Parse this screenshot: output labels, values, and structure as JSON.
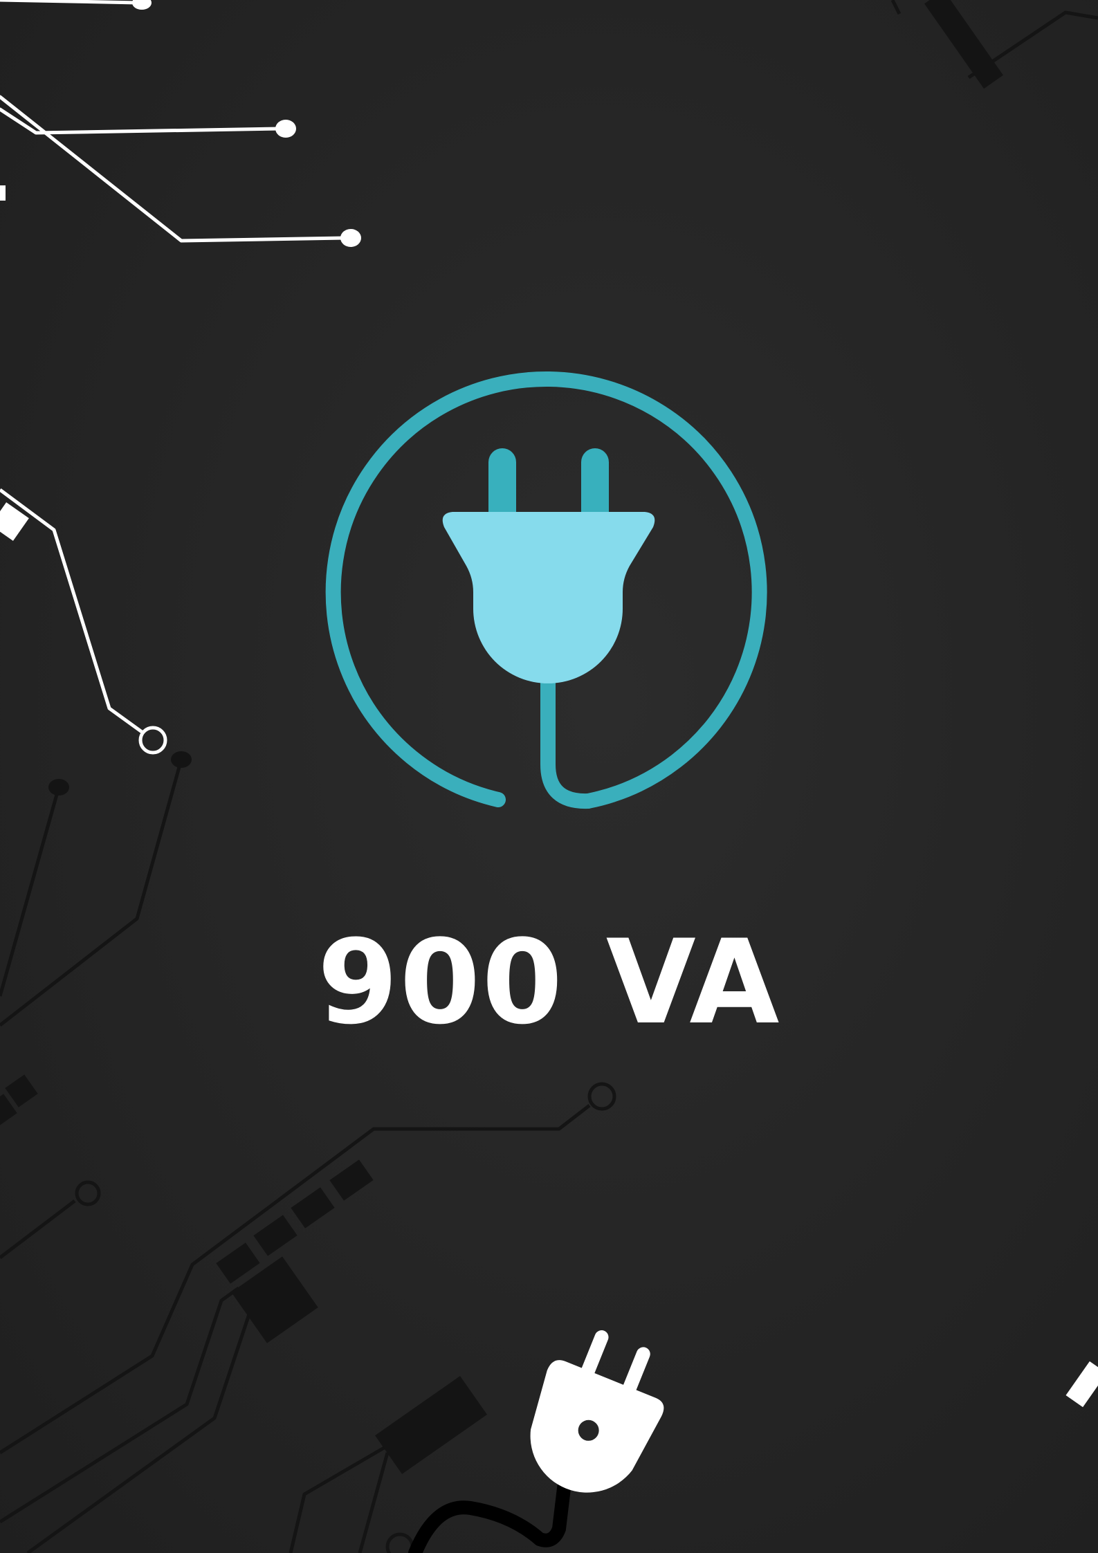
{
  "rating": {
    "text": "900 VA"
  },
  "icons": {
    "central": "power-plug-icon",
    "bottom": "plug-cable-icon"
  },
  "colors": {
    "background": "#262626",
    "ring": "#3aafbc",
    "prong": "#38b0bd",
    "plug_body": "#86dbec",
    "text": "#ffffff",
    "trace_light": "#ffffff",
    "trace_dark": "#121212"
  }
}
